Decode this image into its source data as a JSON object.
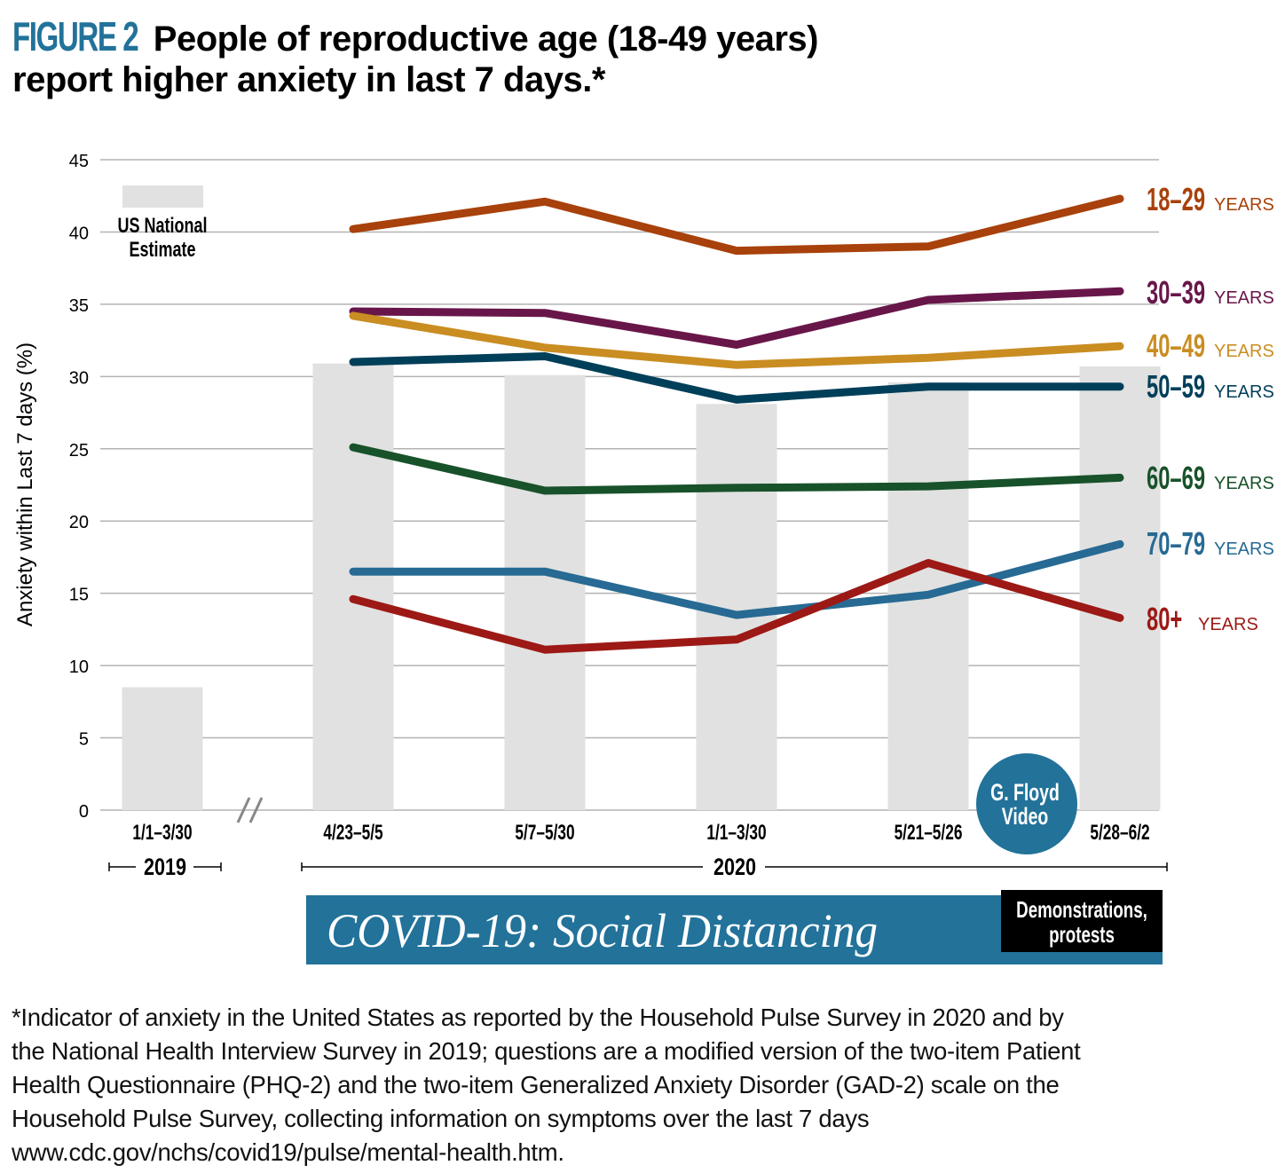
{
  "title": {
    "figure_label": "FIGURE 2",
    "line1": "People of reproductive age (18-49 years)",
    "line2": "report higher anxiety in last 7 days.*"
  },
  "colors": {
    "accent": "#22729a",
    "bar": "#e1e1e1",
    "grid": "#b3b3b3"
  },
  "chart_data": {
    "type": "line",
    "title": "People of reproductive age (18-49 years) report higher anxiety in last 7 days.*",
    "xlabel": "",
    "ylabel": "Anxiety within Last 7 days (%)",
    "ylim": [
      0,
      45
    ],
    "yticks": [
      0,
      5,
      10,
      15,
      20,
      25,
      30,
      35,
      40,
      45
    ],
    "grid": true,
    "categories": [
      "1/1–3/30",
      "4/23–5/5",
      "5/7–5/30",
      "1/1–3/30",
      "5/21–5/26",
      "5/28–6/2"
    ],
    "year_groups": [
      {
        "label": "2019",
        "categories": [
          0
        ]
      },
      {
        "label": "2020",
        "categories": [
          1,
          2,
          3,
          4,
          5
        ]
      }
    ],
    "axis_break": "//",
    "bars": {
      "name": "US National Estimate",
      "legend_label_line1": "US National",
      "legend_label_line2": "Estimate",
      "values": [
        8.5,
        30.9,
        30.1,
        28.1,
        29.6,
        30.7
      ]
    },
    "series": [
      {
        "name": "18–29",
        "suffix": "YEARS",
        "color": "#a8410b",
        "values": [
          null,
          40.2,
          42.1,
          38.7,
          39.0,
          42.3
        ]
      },
      {
        "name": "30–39",
        "suffix": "YEARS",
        "color": "#68164a",
        "values": [
          null,
          34.5,
          34.4,
          32.2,
          35.3,
          35.9
        ]
      },
      {
        "name": "40–49",
        "suffix": "YEARS",
        "color": "#c98d22",
        "values": [
          null,
          34.2,
          32.0,
          30.8,
          31.3,
          32.1
        ]
      },
      {
        "name": "50–59",
        "suffix": "YEARS",
        "color": "#003f59",
        "values": [
          null,
          31.0,
          31.4,
          28.4,
          29.3,
          29.3
        ]
      },
      {
        "name": "60–69",
        "suffix": "YEARS",
        "color": "#18522a",
        "values": [
          null,
          25.1,
          22.1,
          22.3,
          22.4,
          23.0
        ]
      },
      {
        "name": "70–79",
        "suffix": "YEARS",
        "color": "#276a93",
        "values": [
          null,
          16.5,
          16.5,
          13.5,
          14.9,
          18.4
        ]
      },
      {
        "name": "80+",
        "suffix": "YEARS",
        "color": "#9c1915",
        "values": [
          null,
          14.6,
          11.1,
          11.8,
          17.1,
          13.3
        ]
      }
    ],
    "annotations": [
      {
        "type": "circle",
        "text_line1": "G. Floyd",
        "text_line2": "Video",
        "between": [
          "5/21–5/26",
          "5/28–6/2"
        ]
      },
      {
        "type": "banner",
        "text": "COVID-19: Social Distancing"
      },
      {
        "type": "box",
        "text_line1": "Demonstrations,",
        "text_line2": "protests"
      }
    ]
  },
  "footnote": [
    "*Indicator of anxiety in the United States as reported by the Household Pulse Survey in 2020 and by",
    "the National Health Interview Survey in 2019; questions are a modified version of the two-item Patient",
    "Health Questionnaire (PHQ-2) and the two-item Generalized Anxiety Disorder (GAD-2) scale on the",
    "Household Pulse Survey, collecting information on symptoms over the last 7 days",
    "www.cdc.gov/nchs/covid19/pulse/mental-health.htm."
  ]
}
